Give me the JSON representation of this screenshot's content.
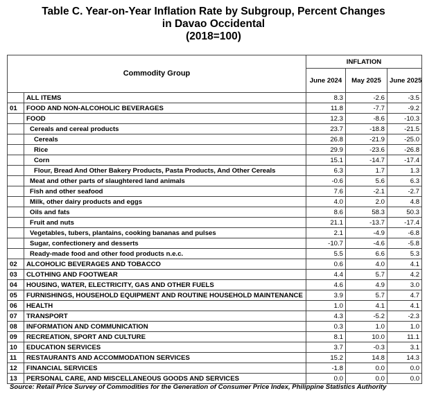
{
  "title": {
    "line1": "Table C. Year-on-Year Inflation Rate by Subgroup, Percent Changes",
    "line2": "in Davao Occidental",
    "line3": "(2018=100)"
  },
  "table": {
    "header": {
      "commodity_group": "Commodity Group",
      "inflation": "INFLATION",
      "months": [
        "June 2024",
        "May 2025",
        "June 2025"
      ]
    },
    "rows": [
      {
        "code": "",
        "name": "ALL ITEMS",
        "v": [
          "8.3",
          "-2.6",
          "-3.5"
        ]
      },
      {
        "code": "01",
        "name": "FOOD AND NON-ALCOHOLIC BEVERAGES",
        "v": [
          "11.8",
          "-7.7",
          "-9.2"
        ]
      },
      {
        "code": "",
        "name": "FOOD",
        "v": [
          "12.3",
          "-8.6",
          "-10.3"
        ]
      },
      {
        "code": "",
        "name": "Cereals and cereal products",
        "v": [
          "23.7",
          "-18.8",
          "-21.5"
        ]
      },
      {
        "code": "",
        "name": "Cereals",
        "v": [
          "26.8",
          "-21.9",
          "-25.0"
        ]
      },
      {
        "code": "",
        "name": "Rice",
        "v": [
          "29.9",
          "-23.6",
          "-26.8"
        ]
      },
      {
        "code": "",
        "name": "Corn",
        "v": [
          "15.1",
          "-14.7",
          "-17.4"
        ]
      },
      {
        "code": "",
        "name": "Flour, Bread And Other Bakery Products, Pasta Products, And Other Cereals",
        "v": [
          "6.3",
          "1.7",
          "1.3"
        ]
      },
      {
        "code": "",
        "name": "Meat and other parts of slaughtered land animals",
        "v": [
          "-0.6",
          "5.6",
          "6.3"
        ]
      },
      {
        "code": "",
        "name": "Fish and other seafood",
        "v": [
          "7.6",
          "-2.1",
          "-2.7"
        ]
      },
      {
        "code": "",
        "name": "Milk, other dairy products and eggs",
        "v": [
          "4.0",
          "2.0",
          "4.8"
        ]
      },
      {
        "code": "",
        "name": "Oils and fats",
        "v": [
          "8.6",
          "58.3",
          "50.3"
        ]
      },
      {
        "code": "",
        "name": "Fruit and nuts",
        "v": [
          "21.1",
          "-13.7",
          "-17.4"
        ]
      },
      {
        "code": "",
        "name": "Vegetables, tubers, plantains, cooking bananas and pulses",
        "v": [
          "2.1",
          "-4.9",
          "-6.8"
        ]
      },
      {
        "code": "",
        "name": "Sugar, confectionery and desserts",
        "v": [
          "-10.7",
          "-4.6",
          "-5.8"
        ]
      },
      {
        "code": "",
        "name": "Ready-made food and other food products n.e.c.",
        "v": [
          "5.5",
          "6.6",
          "5.3"
        ]
      },
      {
        "code": "02",
        "name": "ALCOHOLIC BEVERAGES AND TOBACCO",
        "v": [
          "0.6",
          "4.0",
          "4.1"
        ]
      },
      {
        "code": "03",
        "name": "CLOTHING AND FOOTWEAR",
        "v": [
          "4.4",
          "5.7",
          "4.2"
        ]
      },
      {
        "code": "04",
        "name": "HOUSING, WATER, ELECTRICITY, GAS AND OTHER FUELS",
        "v": [
          "4.6",
          "4.9",
          "3.0"
        ]
      },
      {
        "code": "05",
        "name": "FURNISHINGS, HOUSEHOLD EQUIPMENT AND ROUTINE HOUSEHOLD MAINTENANCE",
        "v": [
          "3.9",
          "5.7",
          "4.7"
        ]
      },
      {
        "code": "06",
        "name": "HEALTH",
        "v": [
          "1.0",
          "4.1",
          "4.1"
        ]
      },
      {
        "code": "07",
        "name": "TRANSPORT",
        "v": [
          "4.3",
          "-5.2",
          "-2.3"
        ]
      },
      {
        "code": "08",
        "name": "INFORMATION AND COMMUNICATION",
        "v": [
          "0.3",
          "1.0",
          "1.0"
        ]
      },
      {
        "code": "09",
        "name": "RECREATION, SPORT AND CULTURE",
        "v": [
          "8.1",
          "10.0",
          "11.1"
        ]
      },
      {
        "code": "10",
        "name": "EDUCATION SERVICES",
        "v": [
          "3.7",
          "-0.3",
          "3.1"
        ]
      },
      {
        "code": "11",
        "name": "RESTAURANTS AND ACCOMMODATION SERVICES",
        "v": [
          "15.2",
          "14.8",
          "14.3"
        ]
      },
      {
        "code": "12",
        "name": "FINANCIAL SERVICES",
        "v": [
          "-1.8",
          "0.0",
          "0.0"
        ]
      },
      {
        "code": "13",
        "name": "PERSONAL CARE, AND MISCELLANEOUS GOODS AND SERVICES",
        "v": [
          "0.0",
          "0.0",
          "0.0"
        ]
      }
    ]
  },
  "source": "Source: Retail Price Survey of Commodities for the Generation of Consumer Price Index, Philippine Statistics Authority"
}
